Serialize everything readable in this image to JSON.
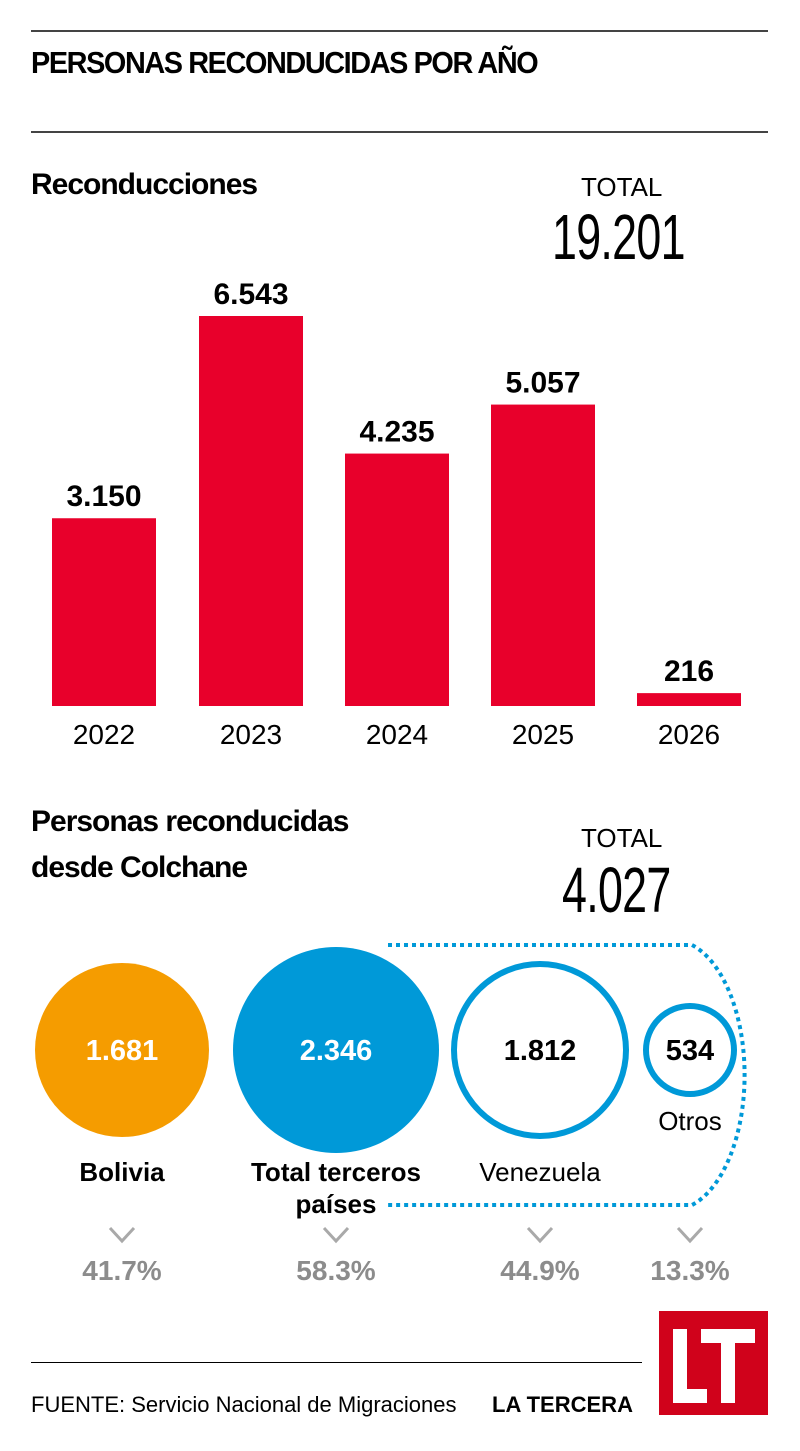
{
  "header": {
    "title": "PERSONAS RECONDUCIDAS POR AÑO"
  },
  "section1": {
    "title": "Reconducciones",
    "total_label": "TOTAL",
    "total_value": "19.201"
  },
  "section2": {
    "title_line1": "Personas reconducidas",
    "title_line2": "desde Colchane",
    "total_label": "TOTAL",
    "total_value": "4.027"
  },
  "colors": {
    "bar": "#e8002b",
    "bolivia": "#f59c00",
    "blue": "#0099d8",
    "pct": "#8c8c8c",
    "logo": "#d0021b"
  },
  "chart_data": [
    {
      "type": "bar",
      "title": "Reconducciones",
      "categories": [
        "2022",
        "2023",
        "2024",
        "2025",
        "2026"
      ],
      "values": [
        3150,
        6543,
        4235,
        5057,
        216
      ],
      "value_labels": [
        "3.150",
        "6.543",
        "4.235",
        "5.057",
        "216"
      ],
      "xlabel": "",
      "ylabel": "",
      "ylim": [
        0,
        6543
      ],
      "grid": false
    },
    {
      "type": "bubble",
      "title": "Personas reconducidas desde Colchane",
      "items": [
        {
          "name": "Bolivia",
          "label_lines": [
            "Bolivia"
          ],
          "value": 1681,
          "value_label": "1.681",
          "pct": "41.7%",
          "style": "filled-orange"
        },
        {
          "name": "Total terceros países",
          "label_lines": [
            "Total terceros",
            "países"
          ],
          "value": 2346,
          "value_label": "2.346",
          "pct": "58.3%",
          "style": "filled-blue"
        },
        {
          "name": "Venezuela",
          "label_lines": [
            "Venezuela"
          ],
          "value": 1812,
          "value_label": "1.812",
          "pct": "44.9%",
          "style": "outline-blue"
        },
        {
          "name": "Otros",
          "label_lines": [
            "Otros"
          ],
          "value": 534,
          "value_label": "534",
          "pct": "13.3%",
          "style": "outline-blue"
        }
      ]
    }
  ],
  "footer": {
    "source": "FUENTE: Servicio Nacional de Migraciones",
    "brand": "LA TERCERA",
    "logo_text": "LT"
  }
}
